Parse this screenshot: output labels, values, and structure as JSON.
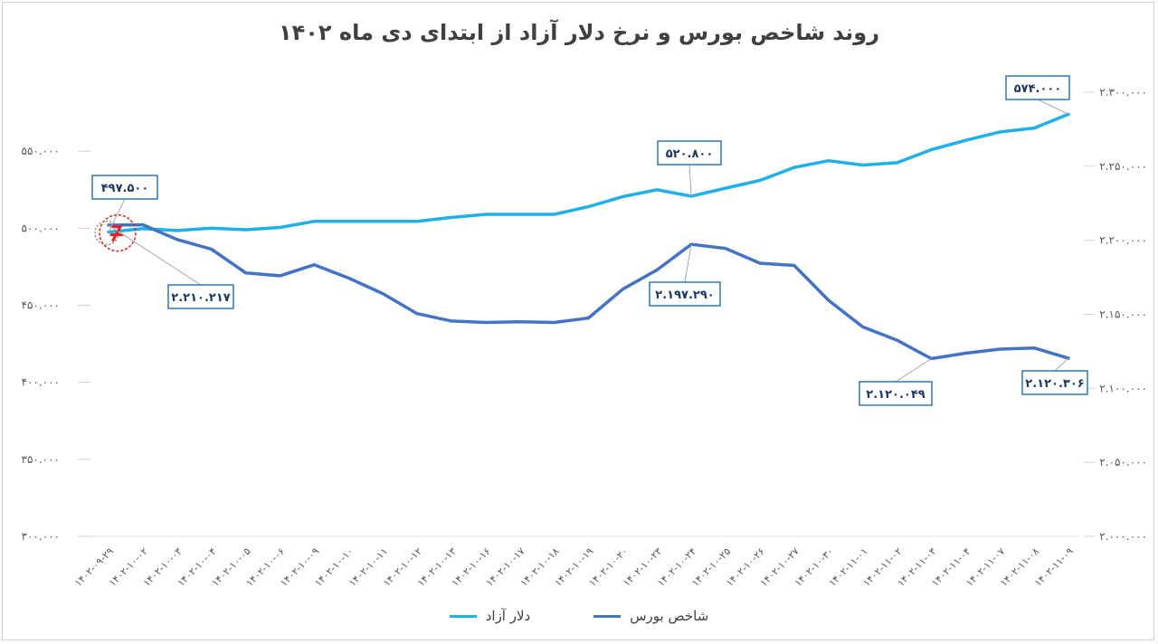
{
  "chart_data": {
    "type": "line",
    "title": "روند شاخص بورس و نرخ دلار آزاد از ابتدای دی ماه ۱۴۰۲",
    "categories": [
      "۱۴۰۲-۰۹-۲۹",
      "۱۴۰۲-۱۰-۰۲",
      "۱۴۰۲-۱۰-۰۳",
      "۱۴۰۲-۱۰-۰۴",
      "۱۴۰۲-۱۰-۰۵",
      "۱۴۰۲-۱۰-۰۶",
      "۱۴۰۲-۱۰-۰۹",
      "۱۴۰۲-۱۰-۱۰",
      "۱۴۰۲-۱۰-۱۱",
      "۱۴۰۲-۱۰-۱۲",
      "۱۴۰۲-۱۰-۱۳",
      "۱۴۰۲-۱۰-۱۶",
      "۱۴۰۲-۱۰-۱۷",
      "۱۴۰۲-۱۰-۱۸",
      "۱۴۰۲-۱۰-۱۹",
      "۱۴۰۲-۱۰-۲۰",
      "۱۴۰۲-۱۰-۲۳",
      "۱۴۰۲-۱۰-۲۴",
      "۱۴۰۲-۱۰-۲۵",
      "۱۴۰۲-۱۰-۲۶",
      "۱۴۰۲-۱۰-۲۷",
      "۱۴۰۲-۱۰-۳۰",
      "۱۴۰۲-۱۱-۰۱",
      "۱۴۰۲-۱۱-۰۲",
      "۱۴۰۲-۱۱-۰۳",
      "۱۴۰۲-۱۱-۰۴",
      "۱۴۰۲-۱۱-۰۷",
      "۱۴۰۲-۱۱-۰۸",
      "۱۴۰۲-۱۱-۰۹"
    ],
    "left_axis": {
      "ylim": [
        300000,
        600000
      ],
      "ticks": [
        300000,
        350000,
        400000,
        450000,
        500000,
        550000
      ],
      "tick_labels": [
        "۳۰۰.۰۰۰",
        "۳۵۰.۰۰۰",
        "۴۰۰.۰۰۰",
        "۴۵۰.۰۰۰",
        "۵۰۰.۰۰۰",
        "۵۵۰.۰۰۰"
      ]
    },
    "right_axis": {
      "ylim": [
        2000000,
        2300000
      ],
      "ticks": [
        2000000,
        2050000,
        2100000,
        2150000,
        2200000,
        2250000,
        2300000
      ],
      "tick_labels": [
        "۲.۰۰۰.۰۰۰",
        "۲.۰۵۰.۰۰۰",
        "۲.۱۰۰.۰۰۰",
        "۲.۱۵۰.۰۰۰",
        "۲.۲۰۰.۰۰۰",
        "۲.۲۵۰.۰۰۰",
        "۲.۳۰۰.۰۰۰"
      ]
    },
    "series": [
      {
        "name": "دلار آزاد",
        "axis": "left",
        "color": "#1fb0e8",
        "values": [
          497500,
          499800,
          498500,
          500000,
          499000,
          500500,
          504500,
          504500,
          504500,
          504500,
          507000,
          509000,
          509000,
          509000,
          514000,
          520500,
          525000,
          520800,
          526000,
          531000,
          539500,
          543800,
          541000,
          542500,
          551000,
          557000,
          562500,
          565000,
          574000
        ]
      },
      {
        "name": "شاخص بورس",
        "axis": "right",
        "color": "#4472c4",
        "values": [
          2210217,
          2210500,
          2200500,
          2194000,
          2178000,
          2176000,
          2183500,
          2174500,
          2164000,
          2150500,
          2145500,
          2144500,
          2145000,
          2144500,
          2147500,
          2167000,
          2180000,
          2197290,
          2194500,
          2184500,
          2183000,
          2159500,
          2141500,
          2132500,
          2120049,
          2123700,
          2126500,
          2127300,
          2120306
        ]
      }
    ],
    "annotations": [
      {
        "series": 0,
        "index": 0,
        "text": "۴۹۷.۵۰۰"
      },
      {
        "series": 0,
        "index": 17,
        "text": "۵۲۰.۸۰۰"
      },
      {
        "series": 0,
        "index": 28,
        "text": "۵۷۴.۰۰۰"
      },
      {
        "series": 1,
        "index": 0,
        "text": "۲.۲۱۰.۲۱۷"
      },
      {
        "series": 1,
        "index": 17,
        "text": "۲.۱۹۷.۲۹۰"
      },
      {
        "series": 1,
        "index": 24,
        "text": "۲.۱۲۰.۰۴۹"
      },
      {
        "series": 1,
        "index": 28,
        "text": "۲.۱۲۰.۳۰۶"
      }
    ],
    "grid": false,
    "legend_position": "bottom"
  },
  "legend": {
    "items": [
      {
        "label": "دلار آزاد",
        "color": "#1fb0e8"
      },
      {
        "label": "شاخص بورس",
        "color": "#4472c4"
      }
    ]
  }
}
